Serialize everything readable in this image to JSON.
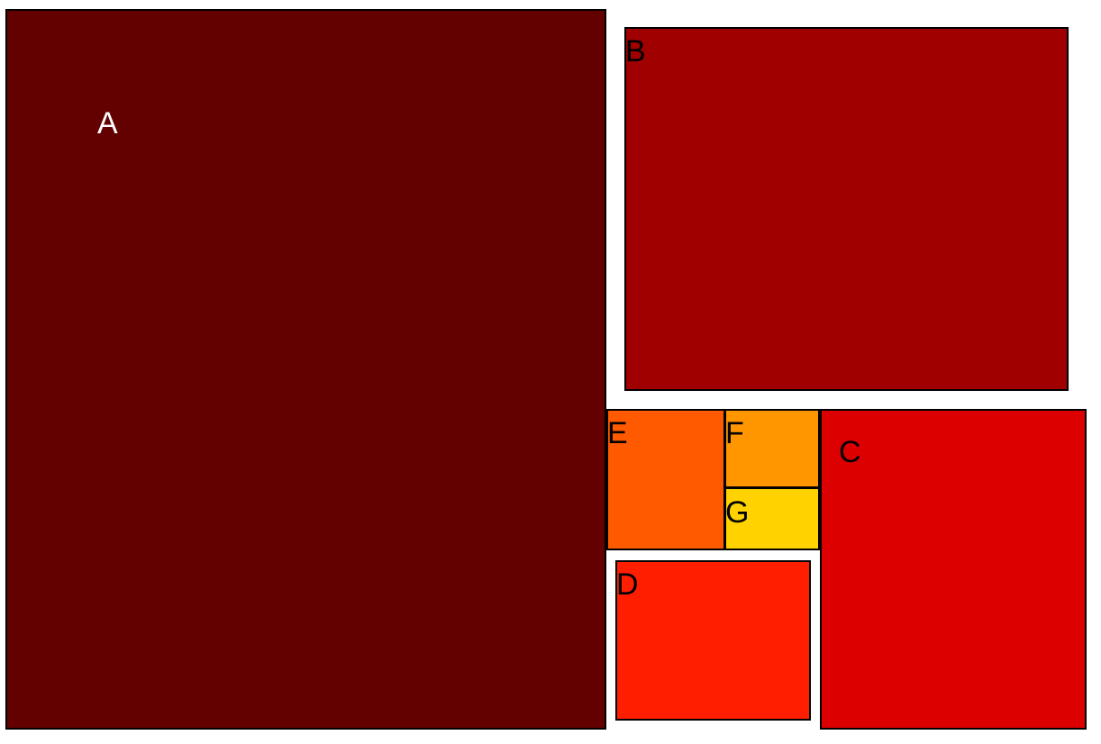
{
  "chart_data": {
    "type": "treemap",
    "items": [
      {
        "label": "A",
        "color": "#630000",
        "label_color": "#ffffff"
      },
      {
        "label": "B",
        "color": "#a00000",
        "label_color": "#000000"
      },
      {
        "label": "C",
        "color": "#dc0000",
        "label_color": "#000000"
      },
      {
        "label": "D",
        "color": "#ff1e00",
        "label_color": "#000000"
      },
      {
        "label": "E",
        "color": "#ff5a00",
        "label_color": "#000000"
      },
      {
        "label": "F",
        "color": "#ff9600",
        "label_color": "#000000"
      },
      {
        "label": "G",
        "color": "#ffd200",
        "label_color": "#000000"
      }
    ]
  }
}
